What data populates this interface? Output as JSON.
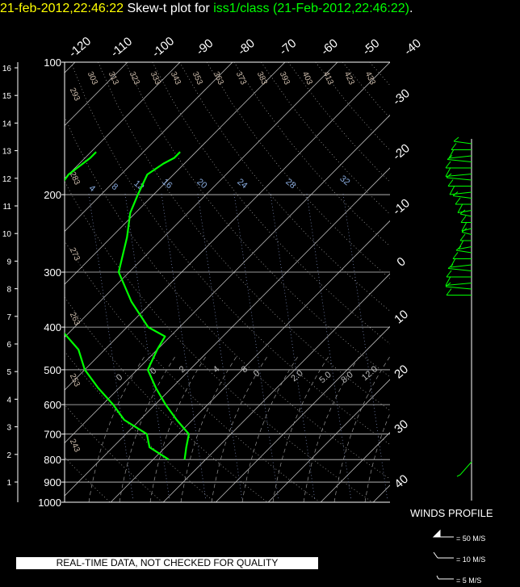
{
  "header": {
    "date_time": "21-feb-2012,22:46:22",
    "plot_label": "Skew-t plot for",
    "station": "iss1/class",
    "station_time": "(21-Feb-2012,22:46:22)",
    "period": "."
  },
  "chart_data": {
    "type": "line",
    "pressure_ticks": [
      "100",
      "200",
      "300",
      "400",
      "500",
      "600",
      "700",
      "800",
      "900",
      "1000"
    ],
    "height_ticks": [
      "1",
      "2",
      "3",
      "4",
      "5",
      "6",
      "7",
      "8",
      "9",
      "10",
      "11",
      "12",
      "13",
      "14",
      "15",
      "16"
    ],
    "temperature_ticks_top": [
      "-120",
      "-110",
      "-100",
      "-90",
      "-80",
      "-70",
      "-60",
      "-50",
      "-40"
    ],
    "temperature_ticks_right": [
      "-30",
      "-20",
      "-10",
      "0",
      "10",
      "20",
      "30",
      "40"
    ],
    "theta_labels": [
      "303",
      "313",
      "323",
      "333",
      "343",
      "353",
      "363",
      "373",
      "383",
      "393",
      "403",
      "413",
      "423",
      "433",
      "293",
      "283",
      "273",
      "263",
      "253",
      "243"
    ],
    "mixing_ratio_labels": [
      "4",
      "8",
      "12",
      "16",
      "20",
      "24",
      "28",
      "32"
    ],
    "theta_e_labels": [
      "0",
      "0",
      "2",
      "4",
      "8",
      "0",
      "2.0",
      "5.0",
      "8.0",
      "12.0"
    ],
    "series": [
      {
        "color": "#00ff00",
        "points": [
          [
            800,
            -7
          ],
          [
            750,
            -13
          ],
          [
            700,
            -16
          ],
          [
            650,
            -23
          ],
          [
            600,
            -28
          ],
          [
            550,
            -34
          ],
          [
            500,
            -40
          ],
          [
            450,
            -45
          ],
          [
            400,
            -53
          ],
          [
            350,
            -58
          ],
          [
            300,
            -66
          ],
          [
            250,
            -73
          ],
          [
            220,
            -76
          ],
          [
            200,
            -79
          ],
          [
            180,
            -80
          ],
          [
            165,
            -79
          ],
          [
            160,
            -79
          ]
        ]
      },
      {
        "color": "#00ff00",
        "points": [
          [
            800,
            -4
          ],
          [
            750,
            -6
          ],
          [
            700,
            -8
          ],
          [
            650,
            -13
          ],
          [
            600,
            -18
          ],
          [
            550,
            -23
          ],
          [
            500,
            -28
          ],
          [
            450,
            -30
          ],
          [
            420,
            -31
          ],
          [
            400,
            -36
          ],
          [
            350,
            -44
          ],
          [
            300,
            -52
          ],
          [
            250,
            -57
          ],
          [
            220,
            -61
          ],
          [
            200,
            -63
          ],
          [
            180,
            -65
          ],
          [
            170,
            -64
          ],
          [
            165,
            -63
          ],
          [
            160,
            -63
          ]
        ]
      }
    ],
    "winds_profile": {
      "title": "WINDS PROFILE",
      "legend": [
        "= 50 M/S",
        "= 10 M/S",
        "= 5 M/S"
      ]
    },
    "qc_note": "REAL-TIME DATA, NOT CHECKED FOR QUALITY"
  }
}
